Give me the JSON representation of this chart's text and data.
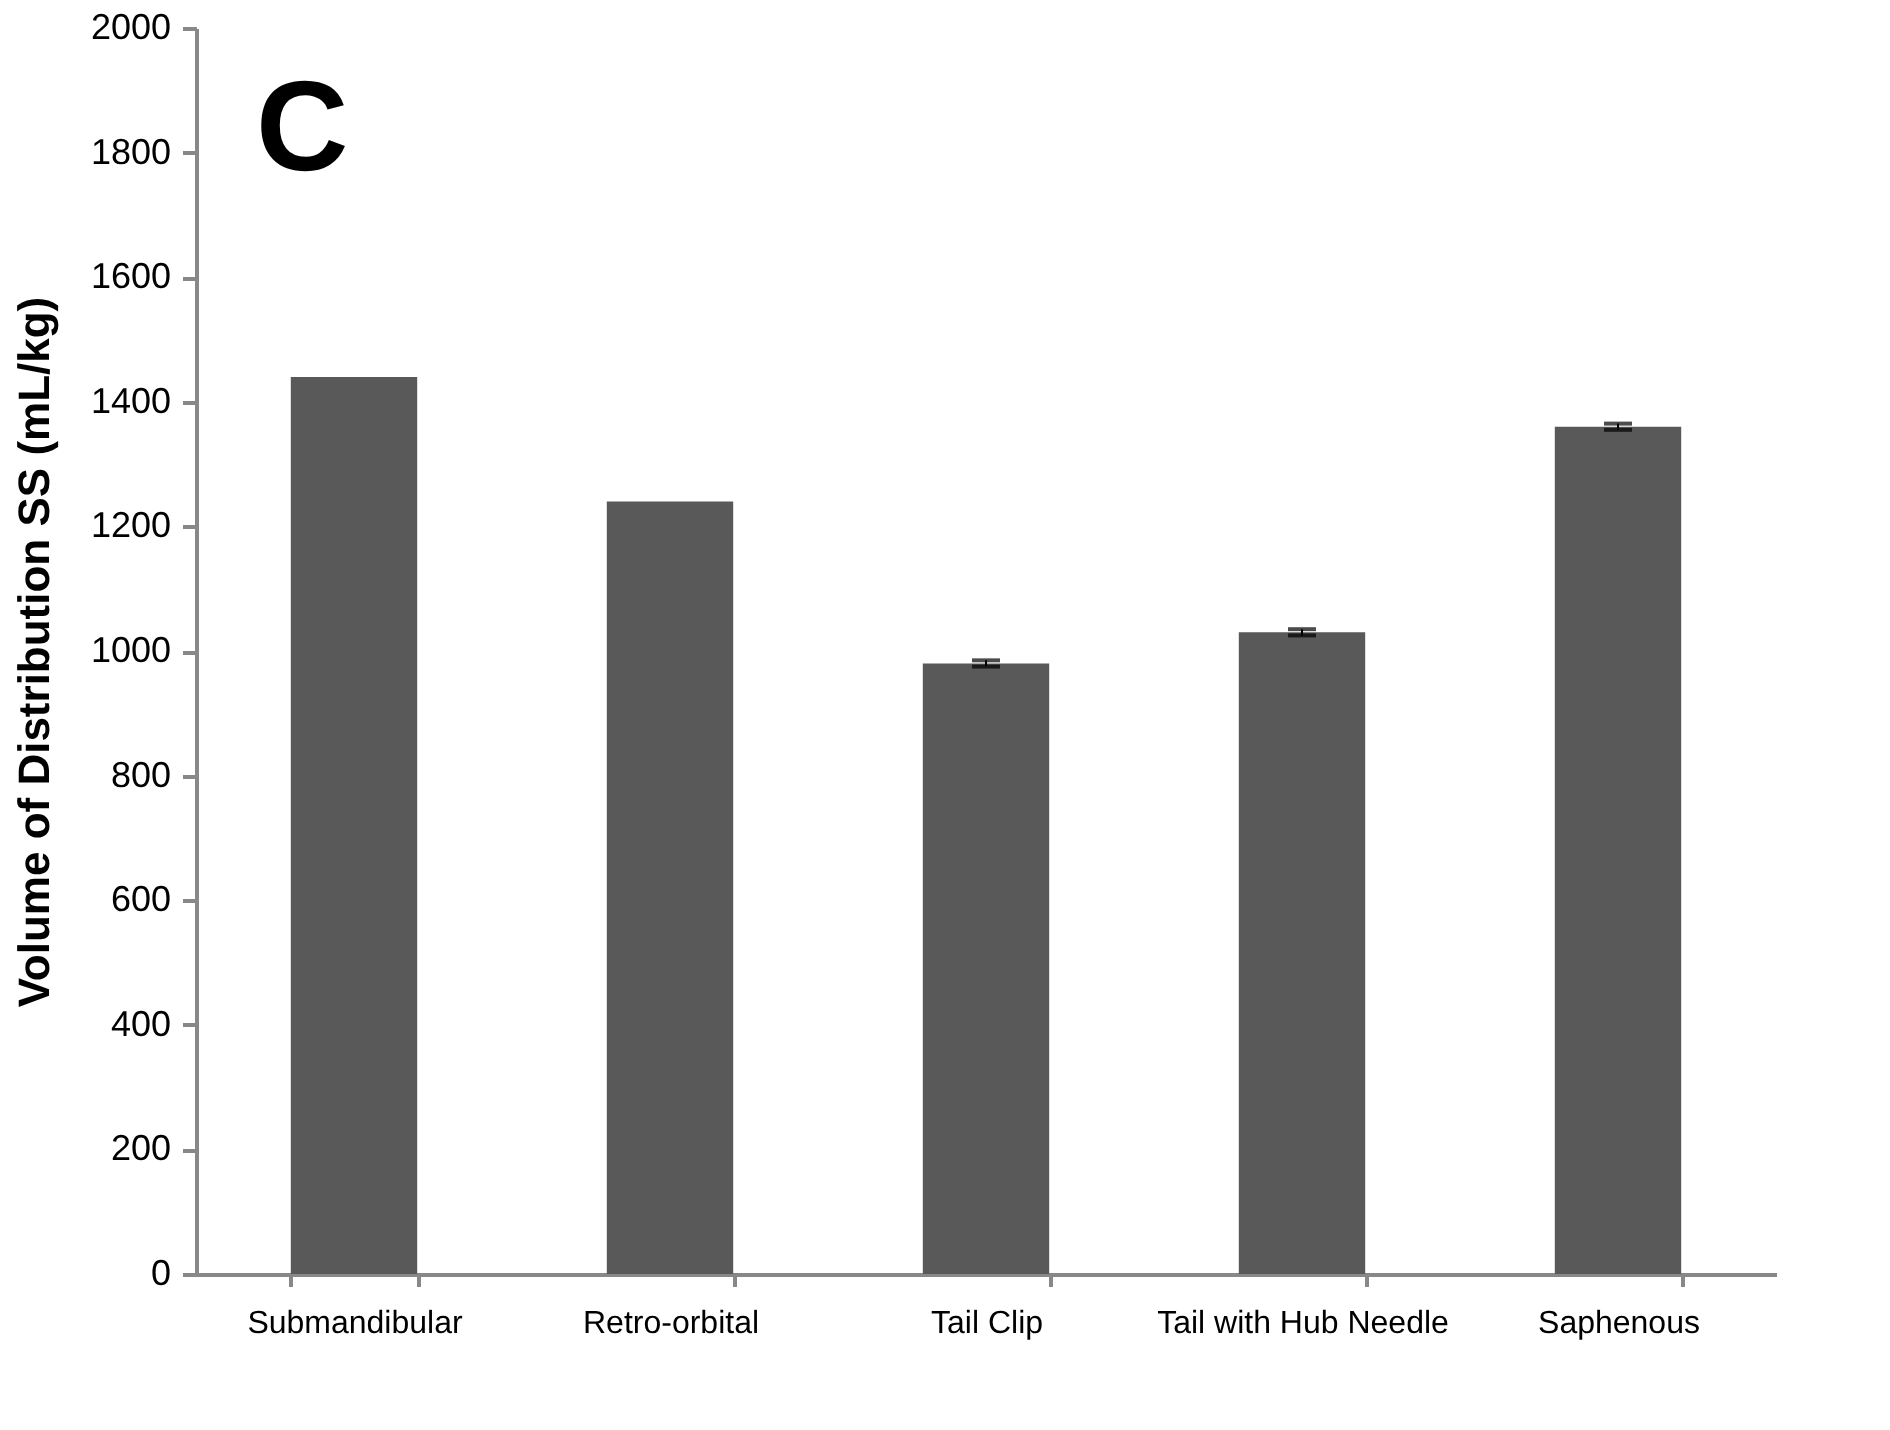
{
  "chart_data": {
    "type": "bar",
    "ylabel": "Volume of Distribution SS (mL/kg)",
    "categories": [
      "Submandibular",
      "Retro-orbital",
      "Tail Clip",
      "Tail with Hub Needle",
      "Saphenous"
    ],
    "values": [
      1440,
      1240,
      980,
      1030,
      1360
    ],
    "errors": [
      null,
      null,
      5,
      5,
      5
    ],
    "color": "#595959",
    "ylim": [
      0,
      2000
    ],
    "yticks": [
      0,
      200,
      400,
      600,
      800,
      1000,
      1200,
      1400,
      1600,
      1800,
      2000
    ],
    "grid": false,
    "annotations": [
      "C"
    ]
  }
}
